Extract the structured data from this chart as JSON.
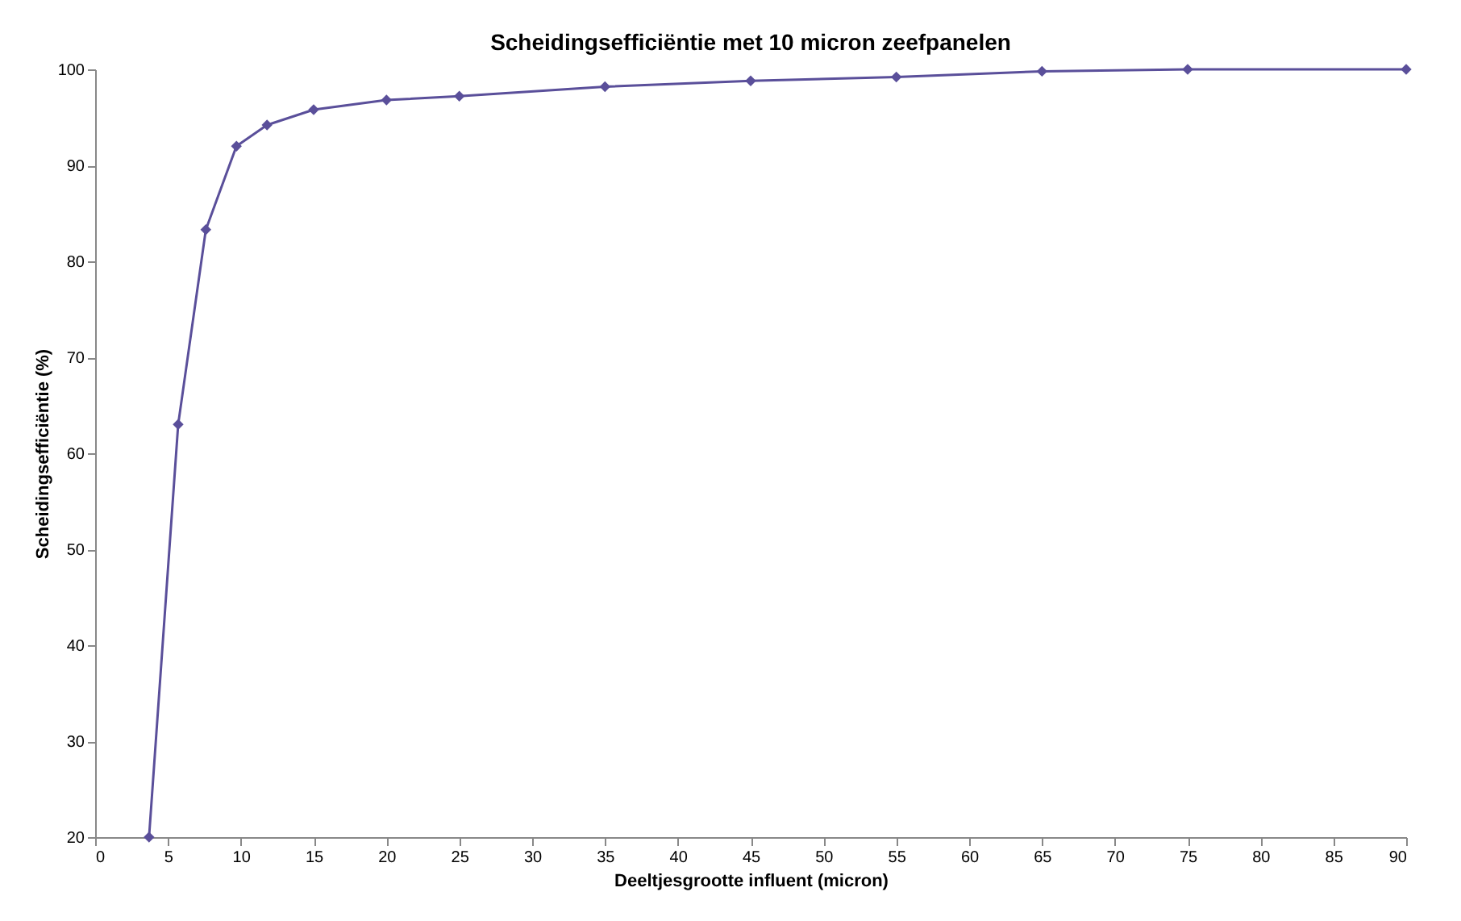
{
  "chart_data": {
    "type": "line",
    "title": "Scheidingsefficiëntie met 10 micron zeefpanelen",
    "xlabel": "Deeltjesgrootte influent (micron)",
    "ylabel": "Scheidingsefficiëntie (%)",
    "x": [
      3.7,
      5.7,
      7.6,
      9.7,
      11.8,
      15,
      20,
      25,
      35,
      45,
      55,
      65,
      75,
      90
    ],
    "series": [
      {
        "color": "#5a4f9a",
        "values": [
          20,
          63,
          83.3,
          92,
          94.2,
          95.8,
          96.8,
          97.2,
          98.2,
          98.8,
          99.2,
          99.8,
          100,
          100
        ]
      }
    ],
    "xlim": [
      0,
      90
    ],
    "xticks": [
      0,
      5,
      10,
      15,
      20,
      25,
      30,
      35,
      40,
      45,
      50,
      55,
      60,
      65,
      70,
      75,
      80,
      85,
      90
    ],
    "ylim": [
      20,
      100
    ],
    "yticks": [
      20,
      30,
      40,
      50,
      60,
      70,
      80,
      90,
      100
    ],
    "grid": false,
    "marker": "diamond",
    "line_style": "solid"
  }
}
